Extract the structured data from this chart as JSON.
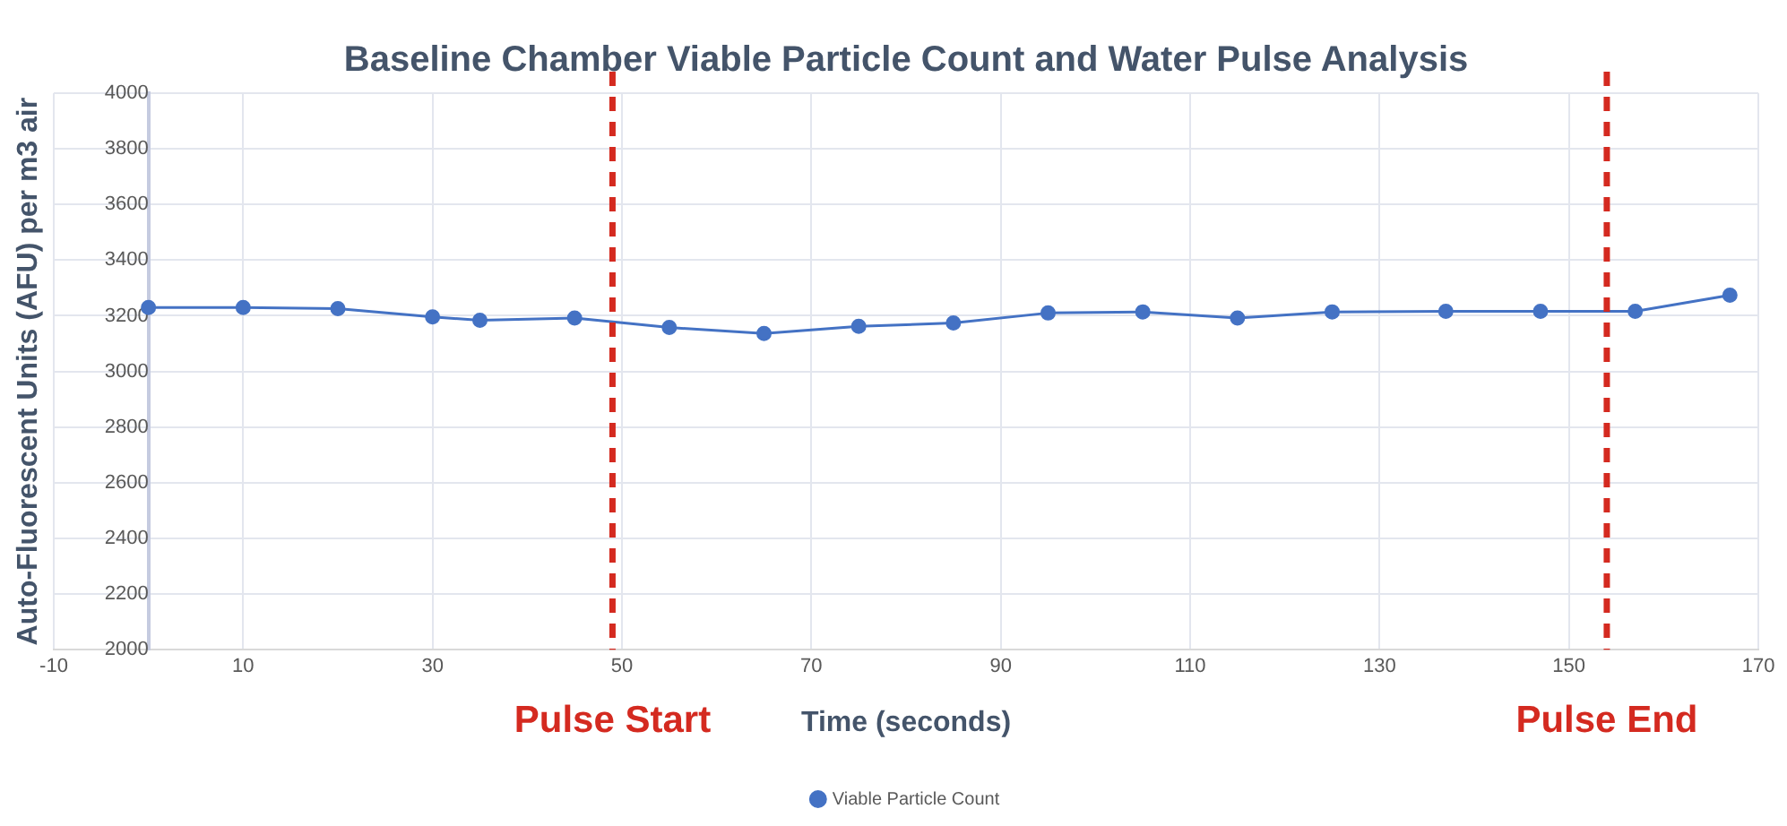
{
  "chart_data": {
    "type": "line",
    "title": "Baseline Chamber Viable Particle Count and Water Pulse Analysis",
    "xlabel": "Time (seconds)",
    "ylabel": "Auto-Fluorescent Units (AFU) per m3 air",
    "x": [
      0,
      10,
      20,
      30,
      35,
      45,
      55,
      65,
      75,
      85,
      95,
      105,
      115,
      125,
      137,
      147,
      157,
      167
    ],
    "series": [
      {
        "name": "Viable Particle Count",
        "color": "#4472c4",
        "values": [
          3230,
          3230,
          3226,
          3196,
          3184,
          3192,
          3158,
          3136,
          3162,
          3174,
          3210,
          3214,
          3192,
          3214,
          3216,
          3216,
          3216,
          3274
        ]
      }
    ],
    "xlim": [
      -10,
      170
    ],
    "xticks": [
      -10,
      10,
      30,
      50,
      70,
      90,
      110,
      130,
      150,
      170
    ],
    "ylim": [
      2000,
      4000
    ],
    "yticks": [
      2000,
      2200,
      2400,
      2600,
      2800,
      3000,
      3200,
      3400,
      3600,
      3800,
      4000
    ],
    "ref_lines": [
      {
        "axis": "x",
        "value": 49,
        "label": "Pulse Start",
        "color": "#d42a20",
        "line_style": "dashed"
      },
      {
        "axis": "x",
        "value": 154,
        "label": "Pulse End",
        "color": "#d42a20",
        "line_style": "dashed"
      }
    ],
    "grid": true,
    "legend": "bottom",
    "marker": "circle",
    "line_style": "solid"
  }
}
